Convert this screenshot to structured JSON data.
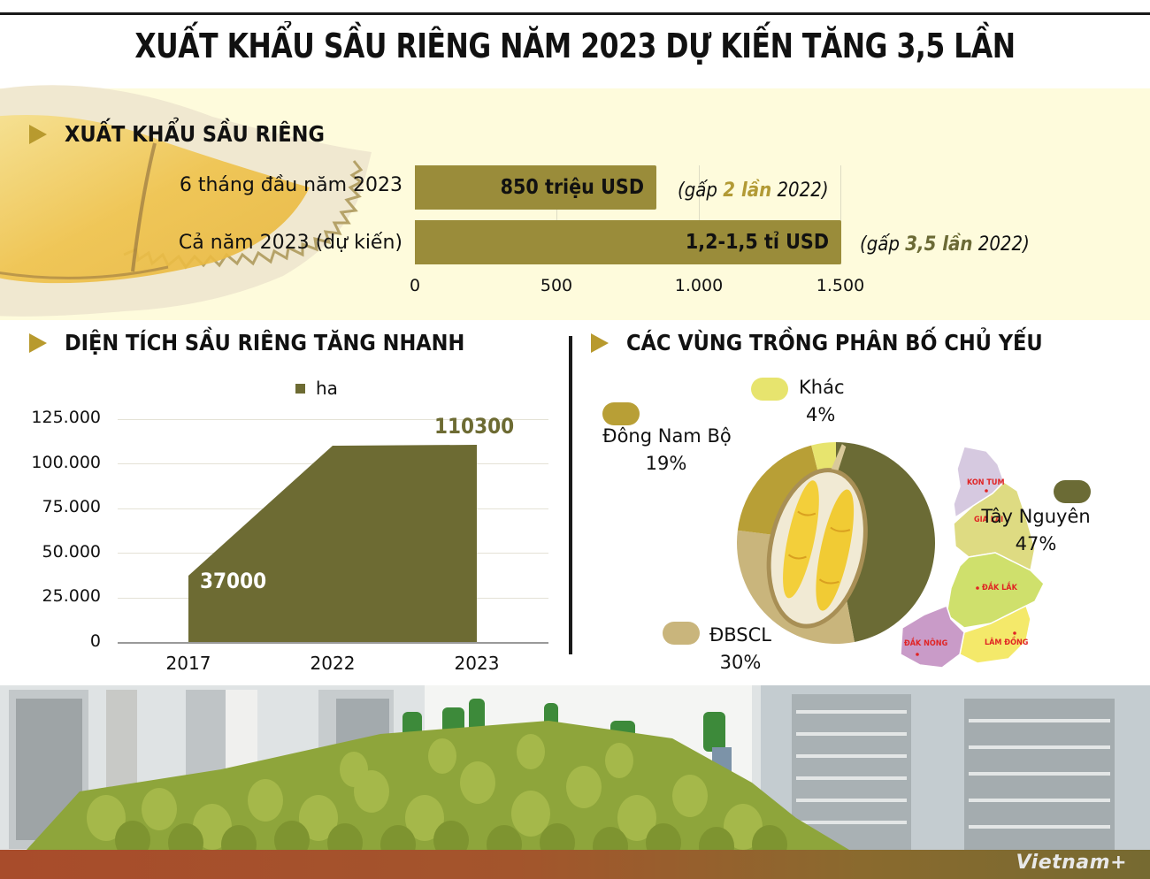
{
  "header": {
    "title": "XUẤT KHẨU SẦU RIÊNG NĂM 2023 DỰ KIẾN TĂNG 3,5 LẦN"
  },
  "export_section": {
    "heading": "XUẤT KHẨU SẦU RIÊNG",
    "rows": [
      {
        "label": "6 tháng đầu năm 2023",
        "value_text": "850 triệu USD",
        "note_prefix": "(gấp ",
        "note_emph": "2 lần",
        "note_suffix": " 2022)",
        "emph_color": "#b29a35"
      },
      {
        "label": "Cả năm 2023 (dự kiến)",
        "value_text": "1,2-1,5 tỉ USD",
        "note_prefix": "(gấp ",
        "note_emph": "3,5 lần",
        "note_suffix": " 2022)",
        "emph_color": "#6b6a35"
      }
    ],
    "axis_ticks": [
      "0",
      "500",
      "1.000",
      "1.500"
    ]
  },
  "area_section": {
    "heading": "DIỆN TÍCH SẦU RIÊNG TĂNG NHANH",
    "legend": "ha",
    "y_ticks": [
      "125.000",
      "100.000",
      "75.000",
      "50.000",
      "25.000",
      "0"
    ],
    "x_ticks": [
      "2017",
      "2022",
      "2023"
    ],
    "label_2017": "37000",
    "label_2023": "110300"
  },
  "pie_section": {
    "heading": "CÁC VÙNG TRỒNG PHÂN BỐ CHỦ YẾU",
    "slices": [
      {
        "name": "Tây Nguyên",
        "pct": "47%",
        "color": "#6b6b35"
      },
      {
        "name": "ĐBSCL",
        "pct": "30%",
        "color": "#c9b57c"
      },
      {
        "name": "Đông Nam Bộ",
        "pct": "19%",
        "color": "#b89f36"
      },
      {
        "name": "Khác",
        "pct": "4%",
        "color": "#e7e46e"
      }
    ],
    "map_labels": {
      "kon_tum": "KON TUM",
      "gia_lai": "GIA LAI",
      "dak_lak": "ĐẮK LẮK",
      "dak_nong": "ĐẮK NÔNG",
      "lam_dong": "LÂM ĐỒNG"
    }
  },
  "footer": {
    "logo": "Vietnam+"
  },
  "chart_data": [
    {
      "type": "bar",
      "title": "XUẤT KHẨU SẦU RIÊNG",
      "orientation": "horizontal",
      "unit": "triệu USD",
      "categories": [
        "6 tháng đầu năm 2023",
        "Cả năm 2023 (dự kiến)"
      ],
      "values": [
        850,
        1500
      ],
      "value_labels": [
        "850 triệu USD",
        "1,2-1,5 tỉ USD"
      ],
      "annotations": [
        "(gấp 2 lần 2022)",
        "(gấp 3,5 lần 2022)"
      ],
      "xlim": [
        0,
        1500
      ],
      "x_ticks": [
        0,
        500,
        1000,
        1500
      ],
      "grid": true
    },
    {
      "type": "area",
      "title": "DIỆN TÍCH SẦU RIÊNG TĂNG NHANH",
      "legend": [
        "ha"
      ],
      "categories": [
        "2017",
        "2022",
        "2023"
      ],
      "series": [
        {
          "name": "ha",
          "values": [
            37000,
            110000,
            110300
          ]
        }
      ],
      "data_labels": {
        "2017": "37000",
        "2023": "110300"
      },
      "ylim": [
        0,
        125000
      ],
      "y_ticks": [
        0,
        25000,
        50000,
        75000,
        100000,
        125000
      ],
      "grid": true
    },
    {
      "type": "pie",
      "title": "CÁC VÙNG TRỒNG PHÂN BỐ CHỦ YẾU",
      "categories": [
        "Tây Nguyên",
        "ĐBSCL",
        "Đông Nam Bộ",
        "Khác"
      ],
      "values": [
        47,
        30,
        19,
        4
      ],
      "unit": "%",
      "colors": [
        "#6b6b35",
        "#c9b57c",
        "#b89f36",
        "#e7e46e"
      ]
    }
  ]
}
